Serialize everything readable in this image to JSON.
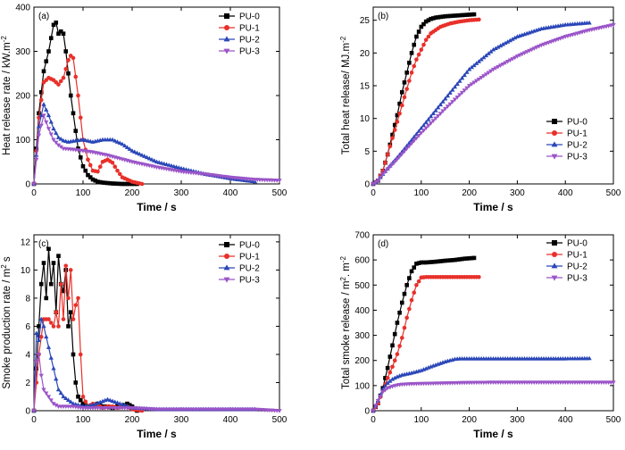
{
  "colors": {
    "PU-0": "#000000",
    "PU-1": "#e8302a",
    "PU-2": "#2a47b8",
    "PU-3": "#9b55c8"
  },
  "chart_data": [
    {
      "panel": "(a)",
      "type": "line",
      "xlabel": "Time / s",
      "ylabel": "Heat release rate / kW.m",
      "ylabel_sup": "-2",
      "xlim": [
        0,
        500
      ],
      "ylim": [
        0,
        400
      ],
      "xticks": [
        0,
        100,
        200,
        300,
        400,
        500
      ],
      "yticks": [
        0,
        100,
        200,
        300,
        400
      ],
      "legend": {
        "position": "top-right",
        "entries": [
          "PU-0",
          "PU-1",
          "PU-2",
          "PU-3"
        ]
      },
      "series": [
        {
          "name": "PU-0",
          "marker": "square",
          "x": [
            0,
            10,
            20,
            30,
            40,
            45,
            50,
            55,
            60,
            65,
            70,
            75,
            80,
            90,
            100,
            110,
            120,
            130,
            140,
            150,
            160,
            180,
            200,
            210
          ],
          "y": [
            0,
            160,
            255,
            300,
            360,
            365,
            340,
            345,
            340,
            300,
            250,
            200,
            160,
            80,
            40,
            20,
            10,
            5,
            3,
            2,
            1,
            0,
            0,
            0
          ]
        },
        {
          "name": "PU-1",
          "marker": "circle",
          "x": [
            0,
            10,
            20,
            30,
            40,
            50,
            60,
            70,
            75,
            80,
            90,
            100,
            110,
            120,
            130,
            140,
            150,
            160,
            170,
            180,
            200,
            220
          ],
          "y": [
            0,
            150,
            230,
            240,
            235,
            225,
            240,
            280,
            290,
            285,
            200,
            100,
            55,
            30,
            28,
            50,
            55,
            48,
            30,
            15,
            5,
            0
          ]
        },
        {
          "name": "PU-2",
          "marker": "triangle-up",
          "x": [
            0,
            10,
            20,
            30,
            40,
            50,
            60,
            70,
            80,
            100,
            120,
            140,
            160,
            180,
            200,
            250,
            300,
            350,
            400,
            450
          ],
          "y": [
            0,
            130,
            180,
            155,
            125,
            105,
            98,
            95,
            97,
            100,
            95,
            100,
            100,
            90,
            75,
            50,
            35,
            22,
            12,
            5
          ]
        },
        {
          "name": "PU-3",
          "marker": "triangle-down",
          "x": [
            0,
            10,
            20,
            30,
            40,
            50,
            60,
            80,
            100,
            120,
            150,
            200,
            250,
            300,
            350,
            400,
            450,
            500
          ],
          "y": [
            0,
            110,
            155,
            125,
            100,
            88,
            80,
            78,
            75,
            72,
            65,
            50,
            38,
            28,
            22,
            15,
            10,
            8
          ]
        }
      ]
    },
    {
      "panel": "(b)",
      "type": "line",
      "xlabel": "Time / s",
      "ylabel": "Total heat release/ MJ.m",
      "ylabel_sup": "-2",
      "xlim": [
        0,
        500
      ],
      "ylim": [
        0,
        27
      ],
      "xticks": [
        0,
        100,
        200,
        300,
        400,
        500
      ],
      "yticks": [
        0,
        5,
        10,
        15,
        20,
        25
      ],
      "legend": {
        "position": "center-right",
        "entries": [
          "PU-0",
          "PU-1",
          "PU-2",
          "PU-3"
        ]
      },
      "series": [
        {
          "name": "PU-0",
          "marker": "square",
          "x": [
            0,
            10,
            20,
            30,
            40,
            50,
            60,
            70,
            80,
            90,
            100,
            110,
            120,
            130,
            140,
            150,
            170,
            190,
            210
          ],
          "y": [
            0,
            0.5,
            2,
            4.5,
            7.5,
            10.5,
            14,
            17,
            20,
            22.5,
            24,
            24.8,
            25.2,
            25.4,
            25.5,
            25.6,
            25.7,
            25.8,
            25.9
          ]
        },
        {
          "name": "PU-1",
          "marker": "circle",
          "x": [
            0,
            10,
            20,
            30,
            40,
            50,
            60,
            70,
            80,
            90,
            100,
            110,
            120,
            140,
            160,
            180,
            200,
            220
          ],
          "y": [
            0,
            0.5,
            2,
            4.5,
            7,
            9.5,
            12,
            14.5,
            17,
            19,
            20.5,
            22,
            23,
            24,
            24.5,
            24.8,
            25,
            25.1
          ]
        },
        {
          "name": "PU-2",
          "marker": "triangle-up",
          "x": [
            0,
            10,
            20,
            50,
            100,
            150,
            200,
            250,
            300,
            350,
            400,
            450
          ],
          "y": [
            0,
            0.5,
            1.5,
            4,
            8.5,
            13,
            17.5,
            20.5,
            22.5,
            23.7,
            24.3,
            24.6
          ]
        },
        {
          "name": "PU-3",
          "marker": "triangle-down",
          "x": [
            0,
            10,
            20,
            50,
            100,
            150,
            200,
            250,
            300,
            350,
            400,
            450,
            500
          ],
          "y": [
            0,
            0.5,
            1.5,
            3.8,
            7.8,
            11.5,
            15,
            17.5,
            19.5,
            21.2,
            22.5,
            23.5,
            24.3
          ]
        }
      ]
    },
    {
      "panel": "(c)",
      "type": "line",
      "xlabel": "Time / s",
      "ylabel": "Smoke production rate / m",
      "ylabel_sup": "2",
      "ylabel_suffix": "s",
      "xlim": [
        0,
        500
      ],
      "ylim": [
        0,
        12.5
      ],
      "xticks": [
        0,
        100,
        200,
        300,
        400,
        500
      ],
      "yticks": [
        0,
        2,
        4,
        6,
        8,
        10,
        12
      ],
      "legend": {
        "position": "top-right",
        "entries": [
          "PU-0",
          "PU-1",
          "PU-2",
          "PU-3"
        ]
      },
      "series": [
        {
          "name": "PU-0",
          "marker": "square",
          "x": [
            0,
            5,
            10,
            15,
            20,
            25,
            30,
            35,
            40,
            45,
            50,
            55,
            60,
            65,
            70,
            75,
            80,
            85,
            90,
            100,
            110,
            120,
            130,
            140,
            150,
            160,
            170,
            180,
            190,
            200,
            210
          ],
          "y": [
            0,
            3,
            6,
            9,
            10.5,
            8,
            11.5,
            9,
            10.5,
            7,
            11,
            9,
            8.5,
            10,
            6,
            7,
            4,
            2,
            1,
            0.5,
            0.3,
            0.3,
            0.5,
            0.3,
            0.3,
            0.2,
            0.3,
            0.3,
            0.5,
            0.3,
            0
          ]
        },
        {
          "name": "PU-1",
          "marker": "circle",
          "x": [
            0,
            10,
            20,
            30,
            40,
            45,
            50,
            55,
            60,
            65,
            70,
            75,
            80,
            85,
            90,
            95,
            100,
            110,
            120,
            130,
            140,
            150,
            160,
            170,
            180,
            190,
            200,
            220
          ],
          "y": [
            0,
            4,
            6.5,
            6.5,
            6,
            7,
            6,
            9,
            6.5,
            10.3,
            8,
            10,
            6.5,
            7.5,
            8,
            4,
            1,
            0.3,
            0.5,
            0.4,
            0.2,
            0.3,
            0.3,
            0.2,
            0.3,
            0.3,
            0.1,
            0
          ]
        },
        {
          "name": "PU-2",
          "marker": "triangle-up",
          "x": [
            0,
            5,
            10,
            15,
            20,
            30,
            40,
            50,
            60,
            80,
            100,
            120,
            150,
            200,
            250,
            300,
            350,
            400,
            450
          ],
          "y": [
            0,
            5.5,
            5,
            6.5,
            6,
            4.5,
            3,
            1.5,
            1,
            0.5,
            0.3,
            0.4,
            0.8,
            0.2,
            0.1,
            0.1,
            0.1,
            0.1,
            0.1
          ]
        },
        {
          "name": "PU-3",
          "marker": "triangle-down",
          "x": [
            0,
            5,
            10,
            15,
            20,
            30,
            40,
            50,
            60,
            80,
            100,
            150,
            200,
            250,
            300,
            350,
            400,
            450,
            500
          ],
          "y": [
            0,
            3.5,
            4,
            2.5,
            1.5,
            1,
            0.5,
            0.3,
            0.3,
            0.3,
            0.2,
            0.2,
            0.2,
            0.1,
            0.1,
            0.1,
            0.1,
            0.1,
            0
          ]
        }
      ]
    },
    {
      "panel": "(d)",
      "type": "line",
      "xlabel": "Time / s",
      "ylabel": "Total smoke release / m",
      "ylabel_sup": "2",
      "ylabel_mid": ". m",
      "ylabel_sup2": "-2",
      "xlim": [
        0,
        500
      ],
      "ylim": [
        0,
        700
      ],
      "xticks": [
        0,
        100,
        200,
        300,
        400,
        500
      ],
      "yticks": [
        0,
        100,
        200,
        300,
        400,
        500,
        600,
        700
      ],
      "legend": {
        "position": "top-right",
        "entries": [
          "PU-0",
          "PU-1",
          "PU-2",
          "PU-3"
        ]
      },
      "series": [
        {
          "name": "PU-0",
          "marker": "square",
          "x": [
            0,
            10,
            20,
            30,
            40,
            50,
            60,
            70,
            80,
            90,
            100,
            110,
            130,
            150,
            170,
            190,
            210
          ],
          "y": [
            0,
            30,
            90,
            170,
            260,
            350,
            430,
            500,
            555,
            585,
            590,
            590,
            593,
            597,
            600,
            605,
            608
          ]
        },
        {
          "name": "PU-1",
          "marker": "circle",
          "x": [
            0,
            10,
            20,
            30,
            40,
            50,
            60,
            70,
            80,
            90,
            100,
            110,
            130,
            150,
            170,
            190,
            210,
            220
          ],
          "y": [
            0,
            30,
            80,
            130,
            175,
            225,
            290,
            370,
            440,
            500,
            530,
            532,
            532,
            532,
            532,
            532,
            532,
            532
          ]
        },
        {
          "name": "PU-2",
          "marker": "triangle-up",
          "x": [
            0,
            10,
            20,
            30,
            40,
            50,
            60,
            80,
            100,
            120,
            150,
            170,
            180,
            200,
            250,
            300,
            350,
            400,
            450
          ],
          "y": [
            0,
            40,
            85,
            110,
            125,
            135,
            142,
            150,
            160,
            175,
            195,
            205,
            207,
            207,
            207,
            207,
            207,
            207,
            208
          ]
        },
        {
          "name": "PU-3",
          "marker": "triangle-down",
          "x": [
            0,
            10,
            20,
            30,
            40,
            50,
            60,
            80,
            100,
            150,
            200,
            250,
            300,
            350,
            400,
            450,
            500
          ],
          "y": [
            0,
            40,
            75,
            90,
            97,
            102,
            105,
            107,
            108,
            110,
            112,
            113,
            113,
            113,
            113,
            113,
            113
          ]
        }
      ]
    }
  ]
}
